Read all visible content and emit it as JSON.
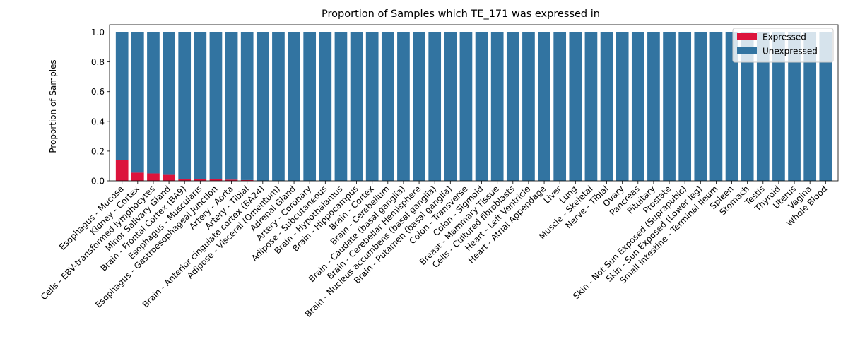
{
  "chart_data": {
    "type": "bar",
    "stacked": true,
    "title": "Proportion of Samples which TE_171 was expressed in",
    "xlabel": "",
    "ylabel": "Proportion of Samples",
    "ylim": [
      0,
      1.05
    ],
    "yticks": [
      "0.0",
      "0.2",
      "0.4",
      "0.6",
      "0.8",
      "1.0"
    ],
    "ytick_values": [
      0,
      0.2,
      0.4,
      0.6,
      0.8,
      1.0
    ],
    "grid": false,
    "legend_position": "top-right",
    "categories": [
      "Esophagus - Mucosa",
      "Kidney - Cortex",
      "Cells - EBV-transformed lymphocytes",
      "Minor Salivary Gland",
      "Brain - Frontal Cortex (BA9)",
      "Esophagus - Muscularis",
      "Esophagus - Gastroesophageal Junction",
      "Artery - Aorta",
      "Artery - Tibial",
      "Brain - Anterior cingulate cortex (BA24)",
      "Adipose - Visceral (Omentum)",
      "Adrenal Gland",
      "Artery - Coronary",
      "Adipose - Subcutaneous",
      "Brain - Hypothalamus",
      "Brain - Hippocampus",
      "Brain - Cortex",
      "Brain - Cerebellum",
      "Brain - Caudate (basal ganglia)",
      "Brain - Cerebellar Hemisphere",
      "Brain - Nucleus accumbens (basal ganglia)",
      "Brain - Putamen (basal ganglia)",
      "Colon - Transverse",
      "Colon - Sigmoid",
      "Breast - Mammary Tissue",
      "Cells - Cultured fibroblasts",
      "Heart - Left Ventricle",
      "Heart - Atrial Appendage",
      "Liver",
      "Lung",
      "Muscle - Skeletal",
      "Nerve - Tibial",
      "Ovary",
      "Pancreas",
      "Pituitary",
      "Prostate",
      "Skin - Not Sun Exposed (Suprapubic)",
      "Skin - Sun Exposed (Lower leg)",
      "Small Intestine - Terminal Ileum",
      "Spleen",
      "Stomach",
      "Testis",
      "Thyroid",
      "Uterus",
      "Vagina",
      "Whole Blood"
    ],
    "series": [
      {
        "name": "Expressed",
        "color": "#dc143c",
        "values": [
          0.14,
          0.055,
          0.05,
          0.04,
          0.01,
          0.01,
          0.01,
          0.008,
          0.005,
          0,
          0,
          0,
          0,
          0,
          0,
          0,
          0,
          0,
          0,
          0,
          0,
          0,
          0,
          0,
          0,
          0,
          0,
          0,
          0,
          0,
          0,
          0,
          0,
          0,
          0,
          0,
          0,
          0,
          0,
          0,
          0,
          0,
          0,
          0,
          0,
          0
        ]
      },
      {
        "name": "Unexpressed",
        "color": "#3274a1",
        "values": [
          0.86,
          0.945,
          0.95,
          0.96,
          0.99,
          0.99,
          0.99,
          0.992,
          0.995,
          1,
          1,
          1,
          1,
          1,
          1,
          1,
          1,
          1,
          1,
          1,
          1,
          1,
          1,
          1,
          1,
          1,
          1,
          1,
          1,
          1,
          1,
          1,
          1,
          1,
          1,
          1,
          1,
          1,
          1,
          1,
          1,
          1,
          1,
          1,
          1,
          1
        ]
      }
    ]
  }
}
